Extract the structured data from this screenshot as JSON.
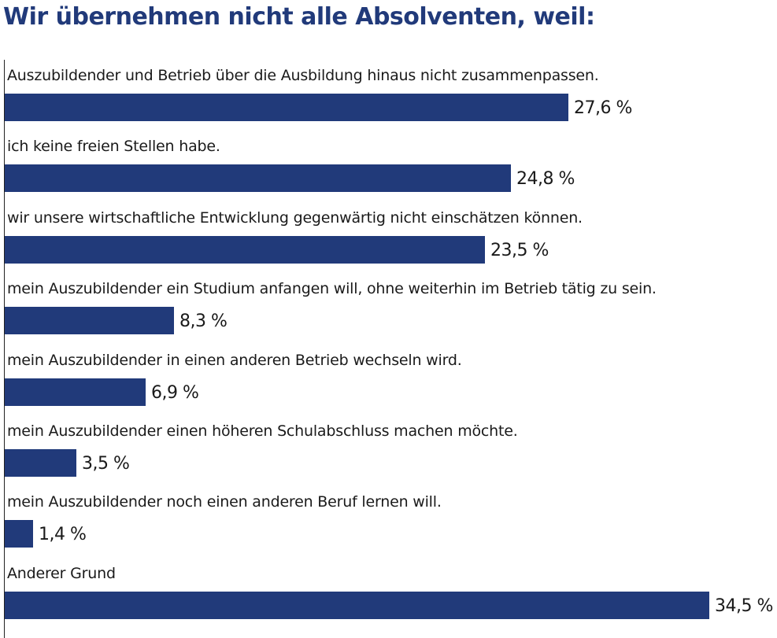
{
  "chart_data": {
    "type": "bar",
    "orientation": "horizontal",
    "title": "Wir übernehmen nicht alle Absolventen, weil:",
    "categories": [
      "Auszubildender und Betrieb über die Ausbildung hinaus nicht zusammenpassen.",
      "ich keine freien Stellen habe.",
      "wir unsere wirtschaftliche Entwicklung gegenwärtig nicht einschätzen können.",
      "mein Auszubildender ein Studium anfangen will, ohne weiterhin im Betrieb tätig zu sein.",
      "mein Auszubildender in einen anderen Betrieb wechseln wird.",
      "mein Auszubildender einen höheren Schulabschluss machen möchte.",
      "mein Auszubildender noch einen anderen Beruf lernen will.",
      "Anderer Grund"
    ],
    "values": [
      27.6,
      24.8,
      23.5,
      8.3,
      6.9,
      3.5,
      1.4,
      34.5
    ],
    "value_labels": [
      "27,6 %",
      "24,8 %",
      "23,5 %",
      "8,3 %",
      "6,9 %",
      "3,5 %",
      "1,4 %",
      "34,5 %"
    ],
    "xlim": [
      0,
      34.5
    ],
    "grid": false,
    "bar_color": "#213a7a",
    "title_color": "#213a7a"
  }
}
